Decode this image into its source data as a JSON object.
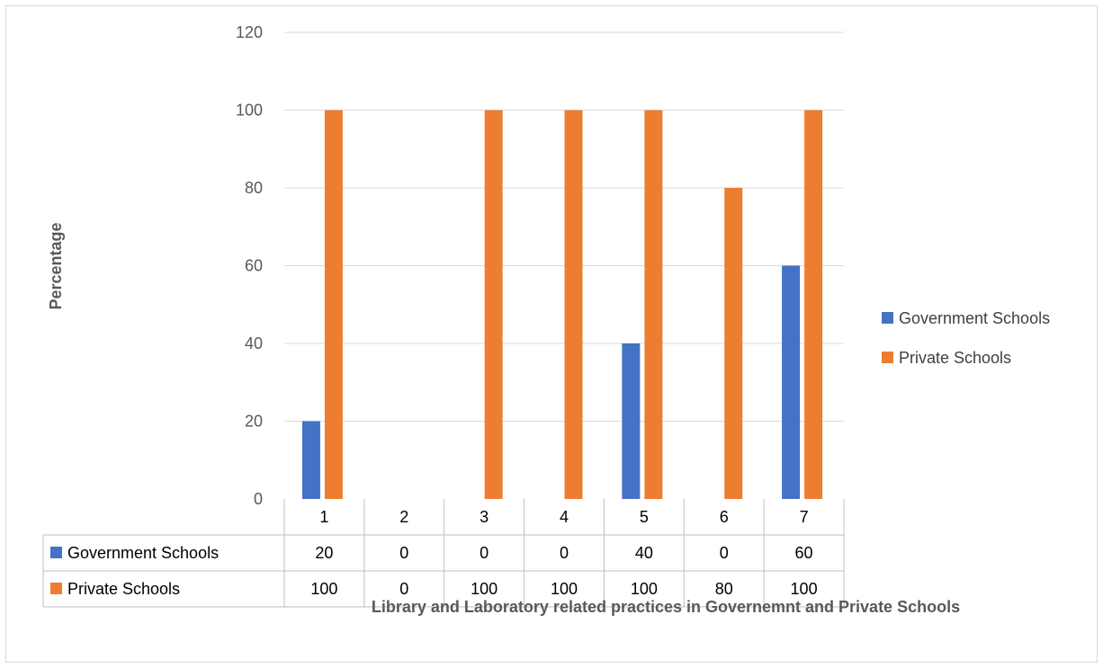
{
  "chart_data": {
    "type": "bar",
    "categories": [
      "1",
      "2",
      "3",
      "4",
      "5",
      "6",
      "7"
    ],
    "series": [
      {
        "name": "Government Schools",
        "values": [
          20,
          0,
          0,
          0,
          40,
          0,
          60
        ],
        "color": "#4472C4"
      },
      {
        "name": "Private Schools",
        "values": [
          100,
          0,
          100,
          100,
          100,
          80,
          100
        ],
        "color": "#ED7D31"
      }
    ],
    "table_values": [
      [
        "20",
        "0",
        "0",
        "0",
        "40",
        "0",
        "60"
      ],
      [
        "100",
        "0",
        "100",
        "100",
        "100",
        "80",
        "100"
      ]
    ],
    "yticks": [
      0,
      20,
      40,
      60,
      80,
      100,
      120
    ],
    "ylim": [
      0,
      120
    ],
    "ylabel": "Percentage",
    "xlabel": "Library and Laboratory related practices in Governemnt and Private Schools",
    "grid": true,
    "legend_position": "right",
    "data_table": true
  }
}
